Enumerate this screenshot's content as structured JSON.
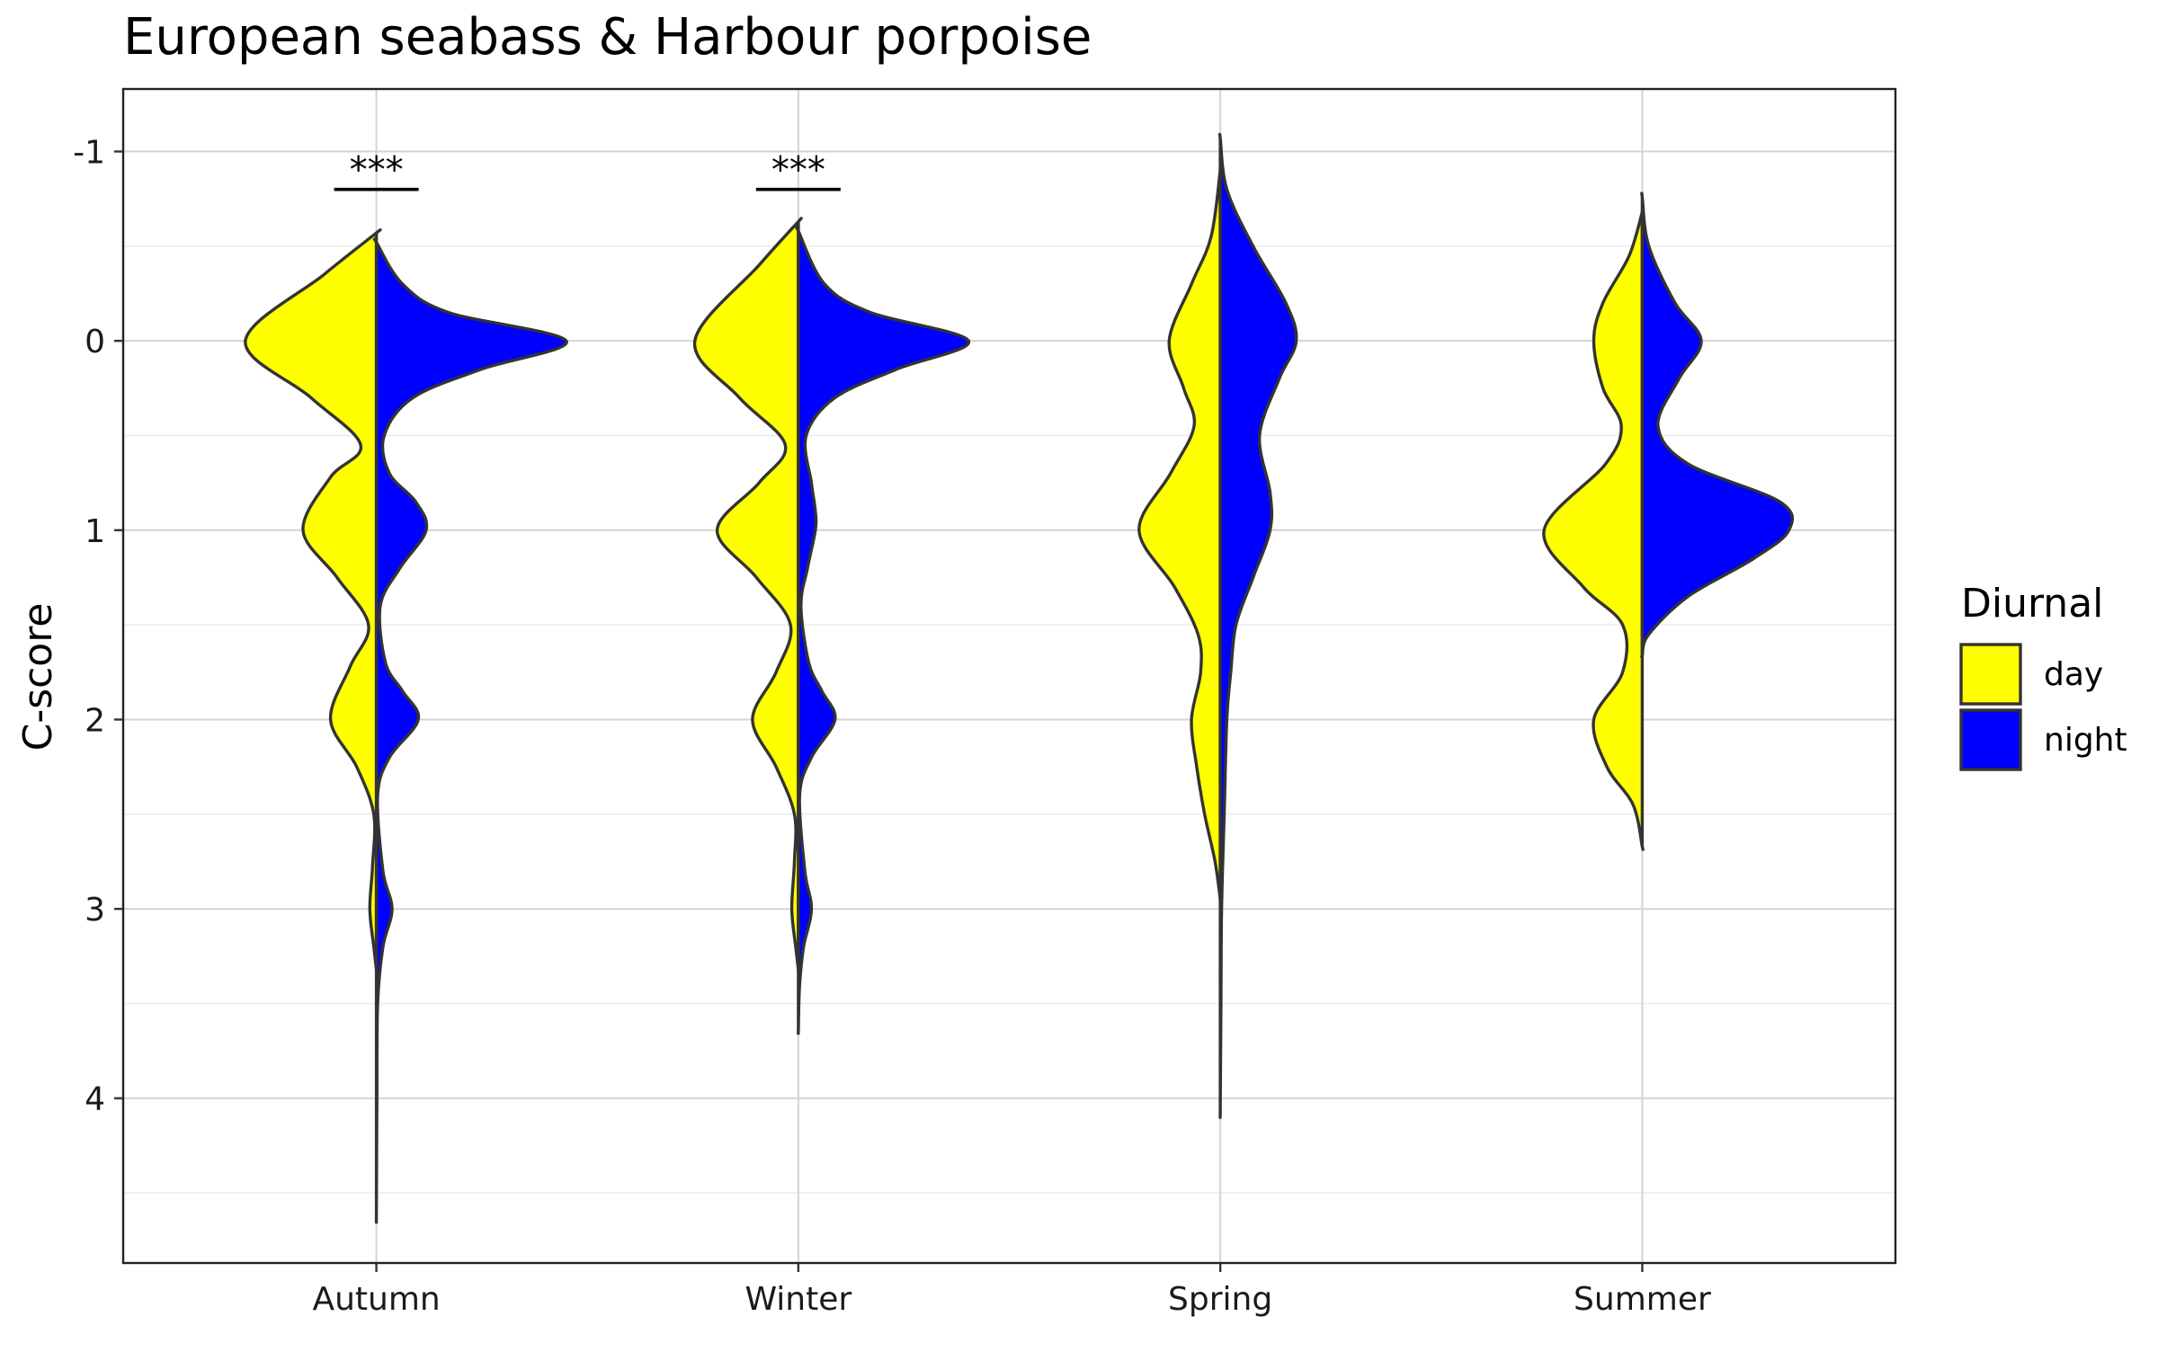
{
  "chart_data": {
    "type": "violin",
    "title": "European seabass & Harbour porpoise",
    "xlabel": "",
    "ylabel": "C-score",
    "y_axis_reversed": true,
    "ylim": [
      -1.33,
      4.87
    ],
    "y_ticks": [
      -1,
      0,
      1,
      2,
      3,
      4
    ],
    "y_tick_labels": [
      "-1",
      "0",
      "1",
      "2",
      "3",
      "4"
    ],
    "categories": [
      "Autumn",
      "Winter",
      "Spring",
      "Summer"
    ],
    "grid": true,
    "legend": {
      "title": "Diurnal",
      "position": "right",
      "entries": [
        {
          "label": "day",
          "color": "#ffff00"
        },
        {
          "label": "night",
          "color": "#0000ff"
        }
      ]
    },
    "series": [
      {
        "name": "day",
        "color": "#ffff00",
        "side": "left",
        "violins": [
          {
            "category": "Autumn",
            "y_range": [
              -0.57,
              3.32
            ],
            "density_profile": [
              [
                -0.57,
                0.0
              ],
              [
                -0.35,
                0.4
              ],
              [
                0.0,
                1.0
              ],
              [
                0.3,
                0.5
              ],
              [
                0.55,
                0.12
              ],
              [
                0.72,
                0.35
              ],
              [
                1.0,
                0.56
              ],
              [
                1.25,
                0.3
              ],
              [
                1.5,
                0.06
              ],
              [
                1.72,
                0.2
              ],
              [
                2.0,
                0.35
              ],
              [
                2.25,
                0.15
              ],
              [
                2.5,
                0.02
              ],
              [
                2.78,
                0.03
              ],
              [
                3.0,
                0.05
              ],
              [
                3.2,
                0.02
              ],
              [
                3.32,
                0.0
              ]
            ]
          },
          {
            "category": "Winter",
            "y_range": [
              -0.63,
              3.32
            ],
            "density_profile": [
              [
                -0.63,
                0.0
              ],
              [
                -0.4,
                0.3
              ],
              [
                0.0,
                0.79
              ],
              [
                0.3,
                0.45
              ],
              [
                0.55,
                0.1
              ],
              [
                0.75,
                0.3
              ],
              [
                1.0,
                0.62
              ],
              [
                1.25,
                0.32
              ],
              [
                1.5,
                0.06
              ],
              [
                1.75,
                0.17
              ],
              [
                2.0,
                0.35
              ],
              [
                2.25,
                0.17
              ],
              [
                2.5,
                0.03
              ],
              [
                2.75,
                0.03
              ],
              [
                3.0,
                0.05
              ],
              [
                3.2,
                0.02
              ],
              [
                3.32,
                0.0
              ]
            ]
          },
          {
            "category": "Spring",
            "y_range": [
              -0.9,
              2.95
            ],
            "density_profile": [
              [
                -0.9,
                0.0
              ],
              [
                -0.55,
                0.07
              ],
              [
                -0.3,
                0.22
              ],
              [
                0.0,
                0.39
              ],
              [
                0.25,
                0.28
              ],
              [
                0.45,
                0.2
              ],
              [
                0.7,
                0.38
              ],
              [
                1.0,
                0.62
              ],
              [
                1.3,
                0.35
              ],
              [
                1.55,
                0.17
              ],
              [
                1.75,
                0.15
              ],
              [
                2.0,
                0.22
              ],
              [
                2.25,
                0.18
              ],
              [
                2.5,
                0.12
              ],
              [
                2.75,
                0.04
              ],
              [
                2.95,
                0.0
              ]
            ]
          },
          {
            "category": "Summer",
            "y_range": [
              -0.68,
              2.67
            ],
            "density_profile": [
              [
                -0.68,
                0.0
              ],
              [
                -0.45,
                0.1
              ],
              [
                -0.2,
                0.3
              ],
              [
                0.0,
                0.37
              ],
              [
                0.25,
                0.3
              ],
              [
                0.45,
                0.16
              ],
              [
                0.65,
                0.28
              ],
              [
                1.0,
                0.75
              ],
              [
                1.3,
                0.45
              ],
              [
                1.5,
                0.15
              ],
              [
                1.75,
                0.15
              ],
              [
                2.0,
                0.37
              ],
              [
                2.25,
                0.27
              ],
              [
                2.45,
                0.07
              ],
              [
                2.67,
                0.0
              ]
            ]
          }
        ]
      },
      {
        "name": "night",
        "color": "#0000ff",
        "side": "right",
        "violins": [
          {
            "category": "Autumn",
            "y_range": [
              -0.52,
              4.61
            ],
            "density_profile": [
              [
                -0.52,
                0.0
              ],
              [
                -0.3,
                0.2
              ],
              [
                -0.15,
                0.55
              ],
              [
                0.0,
                1.45
              ],
              [
                0.15,
                0.8
              ],
              [
                0.3,
                0.28
              ],
              [
                0.5,
                0.06
              ],
              [
                0.7,
                0.1
              ],
              [
                0.85,
                0.3
              ],
              [
                1.0,
                0.38
              ],
              [
                1.2,
                0.18
              ],
              [
                1.4,
                0.03
              ],
              [
                1.7,
                0.07
              ],
              [
                1.85,
                0.2
              ],
              [
                2.0,
                0.32
              ],
              [
                2.2,
                0.1
              ],
              [
                2.4,
                0.01
              ],
              [
                2.8,
                0.05
              ],
              [
                3.0,
                0.12
              ],
              [
                3.2,
                0.05
              ],
              [
                3.5,
                0.01
              ],
              [
                4.0,
                0.004
              ],
              [
                4.61,
                0.0
              ]
            ]
          },
          {
            "category": "Winter",
            "y_range": [
              -0.58,
              3.64
            ],
            "density_profile": [
              [
                -0.58,
                0.0
              ],
              [
                -0.3,
                0.2
              ],
              [
                -0.15,
                0.55
              ],
              [
                0.0,
                1.3
              ],
              [
                0.15,
                0.75
              ],
              [
                0.3,
                0.28
              ],
              [
                0.5,
                0.06
              ],
              [
                0.75,
                0.1
              ],
              [
                0.9,
                0.13
              ],
              [
                1.0,
                0.13
              ],
              [
                1.2,
                0.07
              ],
              [
                1.4,
                0.02
              ],
              [
                1.7,
                0.08
              ],
              [
                1.85,
                0.18
              ],
              [
                2.0,
                0.28
              ],
              [
                2.2,
                0.1
              ],
              [
                2.4,
                0.01
              ],
              [
                2.8,
                0.05
              ],
              [
                3.0,
                0.1
              ],
              [
                3.2,
                0.04
              ],
              [
                3.4,
                0.01
              ],
              [
                3.64,
                0.0
              ]
            ]
          },
          {
            "category": "Spring",
            "y_range": [
              -1.07,
              4.06
            ],
            "density_profile": [
              [
                -1.07,
                0.0
              ],
              [
                -0.8,
                0.05
              ],
              [
                -0.5,
                0.25
              ],
              [
                -0.2,
                0.5
              ],
              [
                0.0,
                0.58
              ],
              [
                0.2,
                0.45
              ],
              [
                0.5,
                0.3
              ],
              [
                0.8,
                0.38
              ],
              [
                1.0,
                0.38
              ],
              [
                1.25,
                0.25
              ],
              [
                1.5,
                0.12
              ],
              [
                1.75,
                0.08
              ],
              [
                2.0,
                0.05
              ],
              [
                2.5,
                0.03
              ],
              [
                3.0,
                0.01
              ],
              [
                3.5,
                0.005
              ],
              [
                4.06,
                0.0
              ]
            ]
          },
          {
            "category": "Summer",
            "y_range": [
              -0.76,
              1.66
            ],
            "density_profile": [
              [
                -0.76,
                0.0
              ],
              [
                -0.5,
                0.05
              ],
              [
                -0.2,
                0.25
              ],
              [
                0.0,
                0.45
              ],
              [
                0.2,
                0.28
              ],
              [
                0.45,
                0.12
              ],
              [
                0.65,
                0.35
              ],
              [
                0.85,
                1.05
              ],
              [
                1.0,
                1.12
              ],
              [
                1.15,
                0.85
              ],
              [
                1.35,
                0.35
              ],
              [
                1.55,
                0.05
              ],
              [
                1.66,
                0.0
              ]
            ]
          }
        ]
      }
    ],
    "annotations": [
      {
        "category": "Autumn",
        "text": "***",
        "y": -0.8
      },
      {
        "category": "Winter",
        "text": "***",
        "y": -0.8
      }
    ]
  }
}
